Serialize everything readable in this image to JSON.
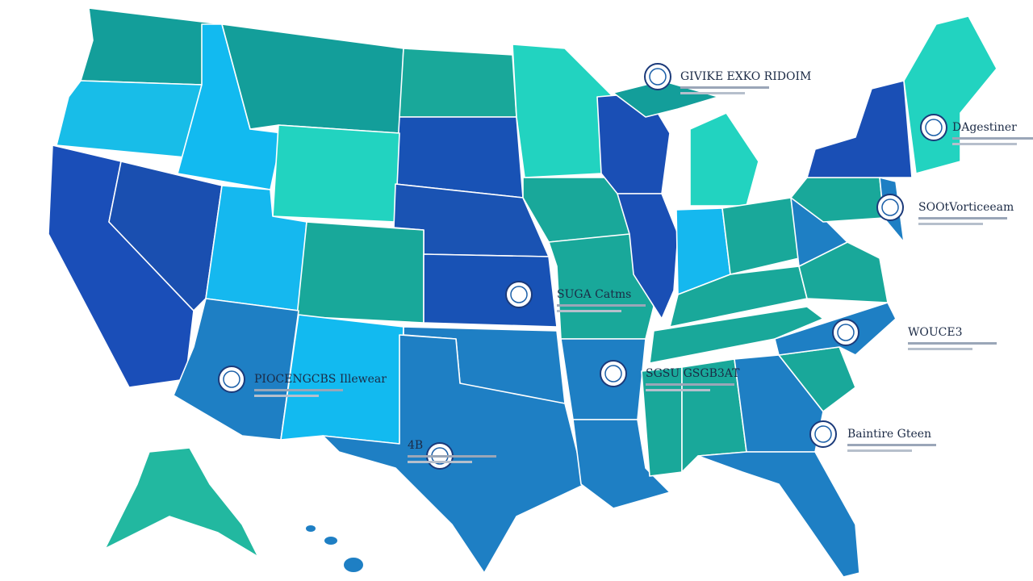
{
  "labels": [
    {
      "text": "GIVIKE EXKO RIDOIM"
    },
    {
      "text": "DAgestiner"
    },
    {
      "text": "SOOtVorticeeam"
    },
    {
      "text": "SUGA Catms"
    },
    {
      "text": "WOUCE3"
    },
    {
      "text": "PIOCENGCBS Illewear"
    },
    {
      "text": "Baintire Gteen"
    },
    {
      "text": "SGSU GSGB3AT"
    },
    {
      "text": "4B"
    }
  ]
}
